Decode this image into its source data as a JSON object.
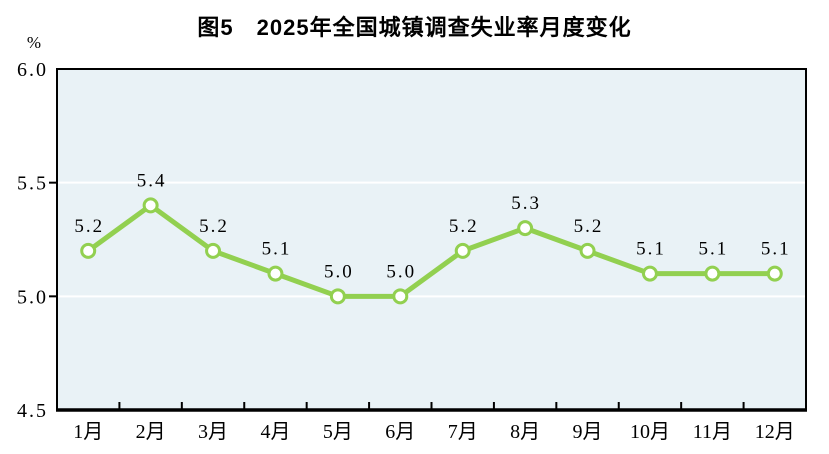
{
  "chart_data": {
    "type": "line",
    "title": "图5　2025年全国城镇调查失业率月度变化",
    "unit_label": "%",
    "categories": [
      "1月",
      "2月",
      "3月",
      "4月",
      "5月",
      "6月",
      "7月",
      "8月",
      "9月",
      "10月",
      "11月",
      "12月"
    ],
    "values": [
      5.2,
      5.4,
      5.2,
      5.1,
      5.0,
      5.0,
      5.2,
      5.3,
      5.2,
      5.1,
      5.1,
      5.1
    ],
    "data_labels": [
      "5.2",
      "5.4",
      "5.2",
      "5.1",
      "5.0",
      "5.0",
      "5.2",
      "5.3",
      "5.2",
      "5.1",
      "5.1",
      "5.1"
    ],
    "xlabel": "",
    "ylabel": "%",
    "ylim": [
      4.5,
      6.0
    ],
    "yticks": [
      {
        "value": 6.0,
        "label": "6.0"
      },
      {
        "value": 5.5,
        "label": "5.5"
      },
      {
        "value": 5.0,
        "label": "5.0"
      },
      {
        "value": 4.5,
        "label": "4.5"
      }
    ],
    "gridline_values": [
      5.5,
      5.0
    ],
    "grid": "horizontal white gridlines on shaded plot area",
    "legend": "none",
    "colors": {
      "line": "#92d050",
      "marker_fill": "#ffffff",
      "marker_stroke": "#92d050",
      "plot_background": "#e9f2f6",
      "gridline": "#ffffff",
      "axis": "#000000",
      "text": "#000000",
      "page_background": "#ffffff"
    }
  }
}
